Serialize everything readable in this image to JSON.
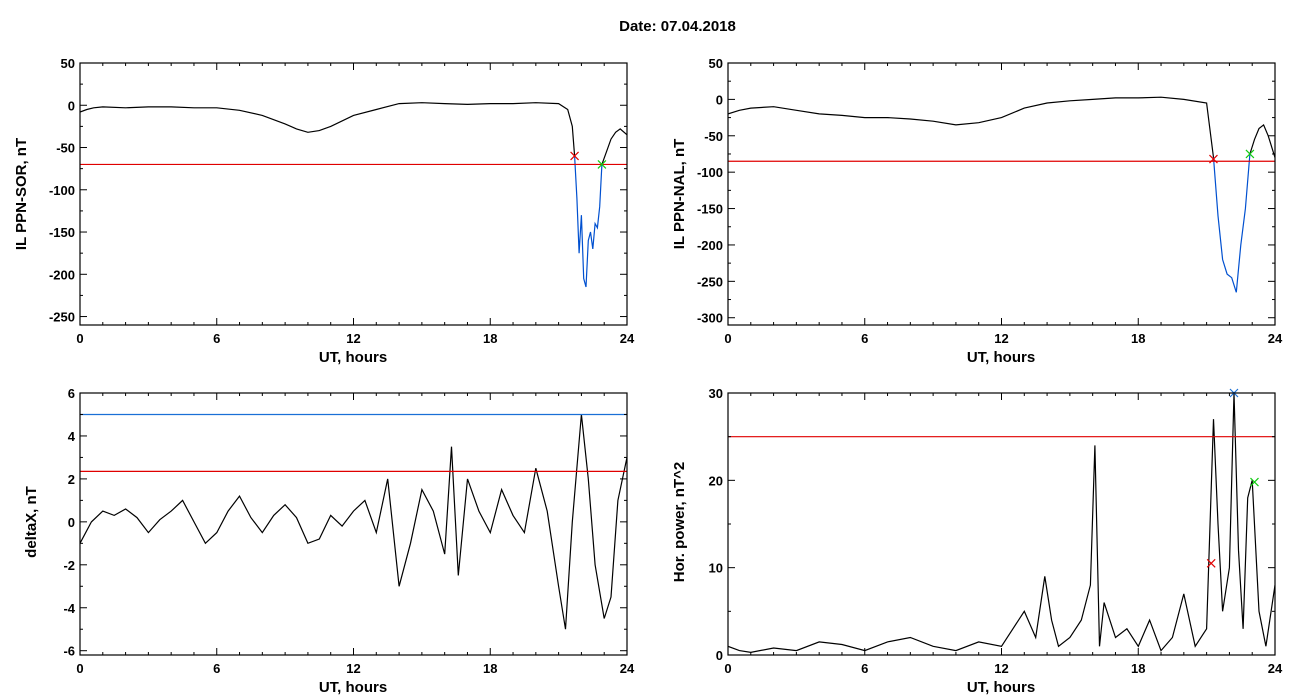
{
  "header": {
    "date_label": "Date:",
    "date_value": "07.04.2018"
  },
  "colors": {
    "trace": "#000000",
    "event": "#0050d0",
    "threshold_red": "#e00000",
    "threshold_blue": "#1a6fd6",
    "marker_start": "#e00000",
    "marker_end": "#11cc11",
    "marker_peak": "#1a6fd6"
  },
  "chart_data": [
    {
      "type": "line",
      "xlabel": "UT, hours",
      "ylabel": "IL PPN-SOR, nT",
      "xlim": [
        0,
        24
      ],
      "ylim": [
        -260,
        50
      ],
      "x_ticks": [
        0,
        6,
        12,
        18,
        24
      ],
      "y_ticks": [
        50,
        0,
        -50,
        -100,
        -150,
        -200,
        -250
      ],
      "series": [
        {
          "color": "#000000",
          "x": [
            0,
            0.3,
            0.6,
            1,
            2,
            3,
            4,
            5,
            6,
            7,
            8,
            9,
            9.5,
            10,
            10.5,
            11,
            12,
            13,
            14,
            15,
            16,
            17,
            18,
            19,
            20,
            21,
            21.4,
            21.6,
            21.7
          ],
          "y": [
            -8,
            -5,
            -3,
            -2,
            -3,
            -2,
            -2,
            -3,
            -3,
            -6,
            -12,
            -22,
            -28,
            -32,
            -30,
            -25,
            -12,
            -5,
            2,
            3,
            2,
            1,
            2,
            2,
            3,
            2,
            -5,
            -25,
            -60
          ]
        },
        {
          "color": "#0050d0",
          "x": [
            21.7,
            21.8,
            21.9,
            22.0,
            22.1,
            22.2,
            22.3,
            22.4,
            22.5,
            22.6,
            22.7,
            22.8,
            22.9
          ],
          "y": [
            -60,
            -110,
            -175,
            -130,
            -205,
            -215,
            -160,
            -150,
            -170,
            -140,
            -145,
            -120,
            -70
          ]
        },
        {
          "color": "#000000",
          "x": [
            22.9,
            23.1,
            23.3,
            23.5,
            23.7,
            24
          ],
          "y": [
            -70,
            -55,
            -40,
            -32,
            -28,
            -35
          ]
        }
      ],
      "thresholds": [
        {
          "y": -70,
          "color": "#e00000"
        }
      ],
      "markers": [
        {
          "x": 21.7,
          "y": -60,
          "color": "#e00000"
        },
        {
          "x": 22.9,
          "y": -70,
          "color": "#11cc11"
        }
      ]
    },
    {
      "type": "line",
      "xlabel": "UT, hours",
      "ylabel": "IL PPN-NAL, nT",
      "xlim": [
        0,
        24
      ],
      "ylim": [
        -310,
        50
      ],
      "x_ticks": [
        0,
        6,
        12,
        18,
        24
      ],
      "y_ticks": [
        50,
        0,
        -50,
        -100,
        -150,
        -200,
        -250,
        -300
      ],
      "series": [
        {
          "color": "#000000",
          "x": [
            0,
            0.5,
            1,
            2,
            3,
            4,
            5,
            6,
            7,
            8,
            9,
            10,
            11,
            12,
            13,
            14,
            15,
            16,
            17,
            18,
            19,
            20,
            21,
            21.3
          ],
          "y": [
            -20,
            -15,
            -12,
            -10,
            -15,
            -20,
            -22,
            -25,
            -25,
            -27,
            -30,
            -35,
            -32,
            -25,
            -12,
            -5,
            -2,
            0,
            2,
            2,
            3,
            0,
            -5,
            -80
          ]
        },
        {
          "color": "#0050d0",
          "x": [
            21.3,
            21.5,
            21.7,
            21.9,
            22.1,
            22.3,
            22.5,
            22.7,
            22.9
          ],
          "y": [
            -80,
            -160,
            -220,
            -240,
            -245,
            -265,
            -200,
            -150,
            -75
          ]
        },
        {
          "color": "#000000",
          "x": [
            22.9,
            23.1,
            23.3,
            23.5,
            23.7,
            24
          ],
          "y": [
            -75,
            -55,
            -40,
            -35,
            -50,
            -80
          ]
        }
      ],
      "thresholds": [
        {
          "y": -85,
          "color": "#e00000"
        }
      ],
      "markers": [
        {
          "x": 21.3,
          "y": -82,
          "color": "#e00000"
        },
        {
          "x": 22.9,
          "y": -75,
          "color": "#11cc11"
        }
      ]
    },
    {
      "type": "line",
      "xlabel": "UT, hours",
      "ylabel": "deltaX, nT",
      "xlim": [
        0,
        24
      ],
      "ylim": [
        -6.2,
        6
      ],
      "x_ticks": [
        0,
        6,
        12,
        18,
        24
      ],
      "y_ticks": [
        6,
        4,
        2,
        0,
        -2,
        -4,
        -6
      ],
      "series": [
        {
          "color": "#000000",
          "x": [
            0,
            0.5,
            1,
            1.5,
            2,
            2.5,
            3,
            3.5,
            4,
            4.5,
            5,
            5.5,
            6,
            6.5,
            7,
            7.5,
            8,
            8.5,
            9,
            9.5,
            10,
            10.5,
            11,
            11.5,
            12,
            12.5,
            13,
            13.5,
            14,
            14.5,
            15,
            15.5,
            16,
            16.3,
            16.6,
            17,
            17.5,
            18,
            18.5,
            19,
            19.5,
            20,
            20.5,
            21,
            21.3,
            21.6,
            22,
            22.3,
            22.6,
            23,
            23.3,
            23.6,
            24
          ],
          "y": [
            -1,
            0,
            0.5,
            0.3,
            0.6,
            0.2,
            -0.5,
            0.1,
            0.5,
            1,
            0,
            -1,
            -0.5,
            0.5,
            1.2,
            0.2,
            -0.5,
            0.3,
            0.8,
            0.2,
            -1,
            -0.8,
            0.3,
            -0.2,
            0.5,
            1,
            -0.5,
            2,
            -3,
            -1,
            1.5,
            0.5,
            -1.5,
            3.5,
            -2.5,
            2,
            0.5,
            -0.5,
            1.5,
            0.3,
            -0.5,
            2.5,
            0.5,
            -3,
            -5,
            0,
            5,
            2,
            -2,
            -4.5,
            -3.5,
            1,
            3
          ]
        }
      ],
      "thresholds": [
        {
          "y": 5,
          "color": "#1a6fd6"
        },
        {
          "y": 2.35,
          "color": "#e00000"
        }
      ],
      "markers": []
    },
    {
      "type": "line",
      "xlabel": "UT, hours",
      "ylabel": "Hor. power, nT^2",
      "xlim": [
        0,
        24
      ],
      "ylim": [
        0,
        30
      ],
      "x_ticks": [
        0,
        6,
        12,
        18,
        24
      ],
      "y_ticks": [
        30,
        20,
        10,
        0
      ],
      "series": [
        {
          "color": "#000000",
          "x": [
            0,
            0.5,
            1,
            2,
            3,
            4,
            5,
            6,
            7,
            8,
            9,
            10,
            11,
            12,
            12.5,
            13,
            13.5,
            13.9,
            14.2,
            14.5,
            15,
            15.5,
            15.9,
            16.1,
            16.3,
            16.5,
            17,
            17.5,
            18,
            18.5,
            19,
            19.5,
            20,
            20.5,
            21,
            21.3,
            21.5,
            21.7,
            22,
            22.2,
            22.4,
            22.6,
            22.8,
            23,
            23.3,
            23.6,
            24
          ],
          "y": [
            1,
            0.5,
            0.3,
            0.8,
            0.5,
            1.5,
            1.2,
            0.5,
            1.5,
            2,
            1,
            0.5,
            1.5,
            1,
            3,
            5,
            2,
            9,
            4,
            1,
            2,
            4,
            8,
            24,
            1,
            6,
            2,
            3,
            1,
            4,
            0.5,
            2,
            7,
            1,
            3,
            27,
            15,
            5,
            10,
            30,
            12,
            3,
            18,
            20,
            5,
            1,
            8
          ]
        }
      ],
      "thresholds": [
        {
          "y": 25,
          "color": "#e00000"
        }
      ],
      "markers": [
        {
          "x": 21.2,
          "y": 10.5,
          "color": "#e00000"
        },
        {
          "x": 22.2,
          "y": 30,
          "color": "#1a6fd6"
        },
        {
          "x": 23.1,
          "y": 19.8,
          "color": "#11cc11"
        }
      ]
    }
  ]
}
